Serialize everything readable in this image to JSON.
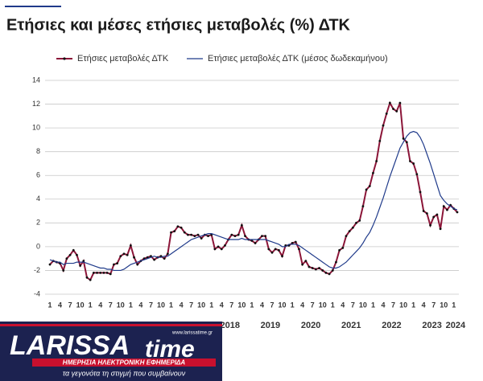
{
  "chart_data": {
    "type": "line",
    "title": "Ετήσιες και μέσες ετήσιες μεταβολές (%) ΔΤΚ",
    "categories": [
      "1",
      null,
      null,
      "4",
      null,
      null,
      "7",
      null,
      null,
      "10",
      null,
      null,
      "1",
      null,
      null,
      "4",
      null,
      null,
      "7",
      null,
      null,
      "10",
      null,
      null,
      "1",
      null,
      null,
      "4",
      null,
      null,
      "7",
      null,
      null,
      "10",
      null,
      null,
      "1",
      null,
      null,
      "4",
      null,
      null,
      "7",
      null,
      null,
      "10",
      null,
      null,
      "1",
      null,
      null,
      "4",
      null,
      null,
      "7",
      null,
      null,
      "10",
      null,
      null,
      "1",
      null,
      null,
      "4",
      null,
      null,
      "7",
      null,
      null,
      "10",
      null,
      null,
      "1",
      null,
      null,
      "4",
      null,
      null,
      "7",
      null,
      null,
      "10",
      null,
      null,
      "1",
      null,
      null,
      "4",
      null,
      null,
      "7",
      null,
      null,
      "10",
      null,
      null,
      "1",
      null,
      null,
      "4",
      null,
      null,
      "7",
      null,
      null,
      "10",
      null,
      null,
      "1",
      null,
      null,
      "4",
      null,
      null,
      "7",
      null,
      null,
      "10",
      null,
      null,
      "1",
      null
    ],
    "year_labels": [
      "2018",
      "2019",
      "2020",
      "2021",
      "2022",
      "2023",
      "2024"
    ],
    "series": [
      {
        "name": "Ετήσιες μεταβολές ΔΤΚ",
        "color": "#8b1538",
        "markers": true,
        "values": [
          -1.5,
          -1.2,
          -1.3,
          -1.4,
          -2.0,
          -1.0,
          -0.7,
          -0.3,
          -0.7,
          -1.6,
          -1.2,
          -2.6,
          -2.8,
          -2.2,
          -2.2,
          -2.2,
          -2.2,
          -2.2,
          -2.3,
          -1.5,
          -1.4,
          -0.8,
          -0.6,
          -0.7,
          0.1,
          -0.9,
          -1.5,
          -1.2,
          -1.0,
          -0.9,
          -0.8,
          -1.1,
          -0.9,
          -0.8,
          -1.0,
          -0.6,
          1.2,
          1.3,
          1.7,
          1.6,
          1.2,
          1.0,
          1.0,
          0.9,
          1.0,
          0.7,
          1.0,
          0.9,
          1.0,
          -0.2,
          0.0,
          -0.2,
          0.1,
          0.6,
          1.0,
          0.9,
          1.0,
          1.8,
          0.9,
          0.6,
          0.5,
          0.3,
          0.6,
          0.9,
          0.9,
          -0.2,
          -0.5,
          -0.2,
          -0.3,
          -0.8,
          0.1,
          0.1,
          0.3,
          0.4,
          -0.2,
          -1.5,
          -1.2,
          -1.7,
          -1.8,
          -1.9,
          -1.8,
          -2.0,
          -2.2,
          -2.3,
          -2.0,
          -1.3,
          -0.3,
          -0.1,
          0.9,
          1.3,
          1.6,
          2.0,
          2.2,
          3.4,
          4.8,
          5.1,
          6.2,
          7.2,
          8.9,
          10.2,
          11.2,
          12.1,
          11.6,
          11.4,
          12.1,
          9.1,
          8.8,
          7.2,
          7.0,
          6.1,
          4.6,
          3.0,
          2.8,
          1.8,
          2.5,
          2.7,
          1.5,
          3.4,
          3.1,
          3.5,
          3.2,
          2.9
        ]
      },
      {
        "name": "Ετήσιες μεταβολές ΔΤΚ (μέσος δωδεκαμήνου)",
        "color": "#1f3a8a",
        "markers": false,
        "values": [
          -1.1,
          -1.2,
          -1.3,
          -1.3,
          -1.5,
          -1.4,
          -1.4,
          -1.4,
          -1.3,
          -1.3,
          -1.3,
          -1.4,
          -1.5,
          -1.6,
          -1.7,
          -1.8,
          -1.8,
          -1.9,
          -1.9,
          -2.0,
          -2.0,
          -2.0,
          -1.9,
          -1.7,
          -1.5,
          -1.4,
          -1.3,
          -1.2,
          -1.1,
          -1.0,
          -0.9,
          -0.8,
          -0.9,
          -0.9,
          -0.8,
          -0.8,
          -0.6,
          -0.4,
          -0.2,
          0.0,
          0.2,
          0.4,
          0.6,
          0.7,
          0.8,
          0.9,
          1.0,
          1.1,
          1.1,
          1.0,
          0.9,
          0.8,
          0.7,
          0.6,
          0.6,
          0.6,
          0.6,
          0.7,
          0.6,
          0.6,
          0.6,
          0.6,
          0.6,
          0.6,
          0.6,
          0.5,
          0.4,
          0.3,
          0.2,
          0.0,
          0.0,
          0.2,
          0.2,
          0.2,
          0.1,
          -0.1,
          -0.3,
          -0.5,
          -0.7,
          -0.9,
          -1.1,
          -1.3,
          -1.5,
          -1.7,
          -1.8,
          -1.8,
          -1.7,
          -1.5,
          -1.3,
          -1.0,
          -0.7,
          -0.4,
          -0.1,
          0.3,
          0.8,
          1.2,
          1.8,
          2.5,
          3.3,
          4.1,
          5.0,
          5.9,
          6.7,
          7.5,
          8.3,
          8.8,
          9.3,
          9.6,
          9.7,
          9.6,
          9.2,
          8.6,
          7.8,
          7.0,
          6.1,
          5.2,
          4.3,
          3.9,
          3.6,
          3.4,
          3.2,
          3.1
        ]
      }
    ],
    "ylim": [
      -4,
      14
    ],
    "yticks": [
      -4,
      -2,
      0,
      2,
      4,
      6,
      8,
      10,
      12,
      14
    ],
    "grid": true
  },
  "logo": {
    "brand": "LARISSA",
    "brand2": "time",
    "url": "www.larissatime.gr",
    "subtitle": "ΗΜΕΡΗΣΙΑ ΗΛΕΚΤΡΟΝΙΚΗ ΕΦΗΜΕΡΙΔΑ",
    "tagline": "τα γεγονότα τη στιγμή που συμβαίνουν"
  }
}
